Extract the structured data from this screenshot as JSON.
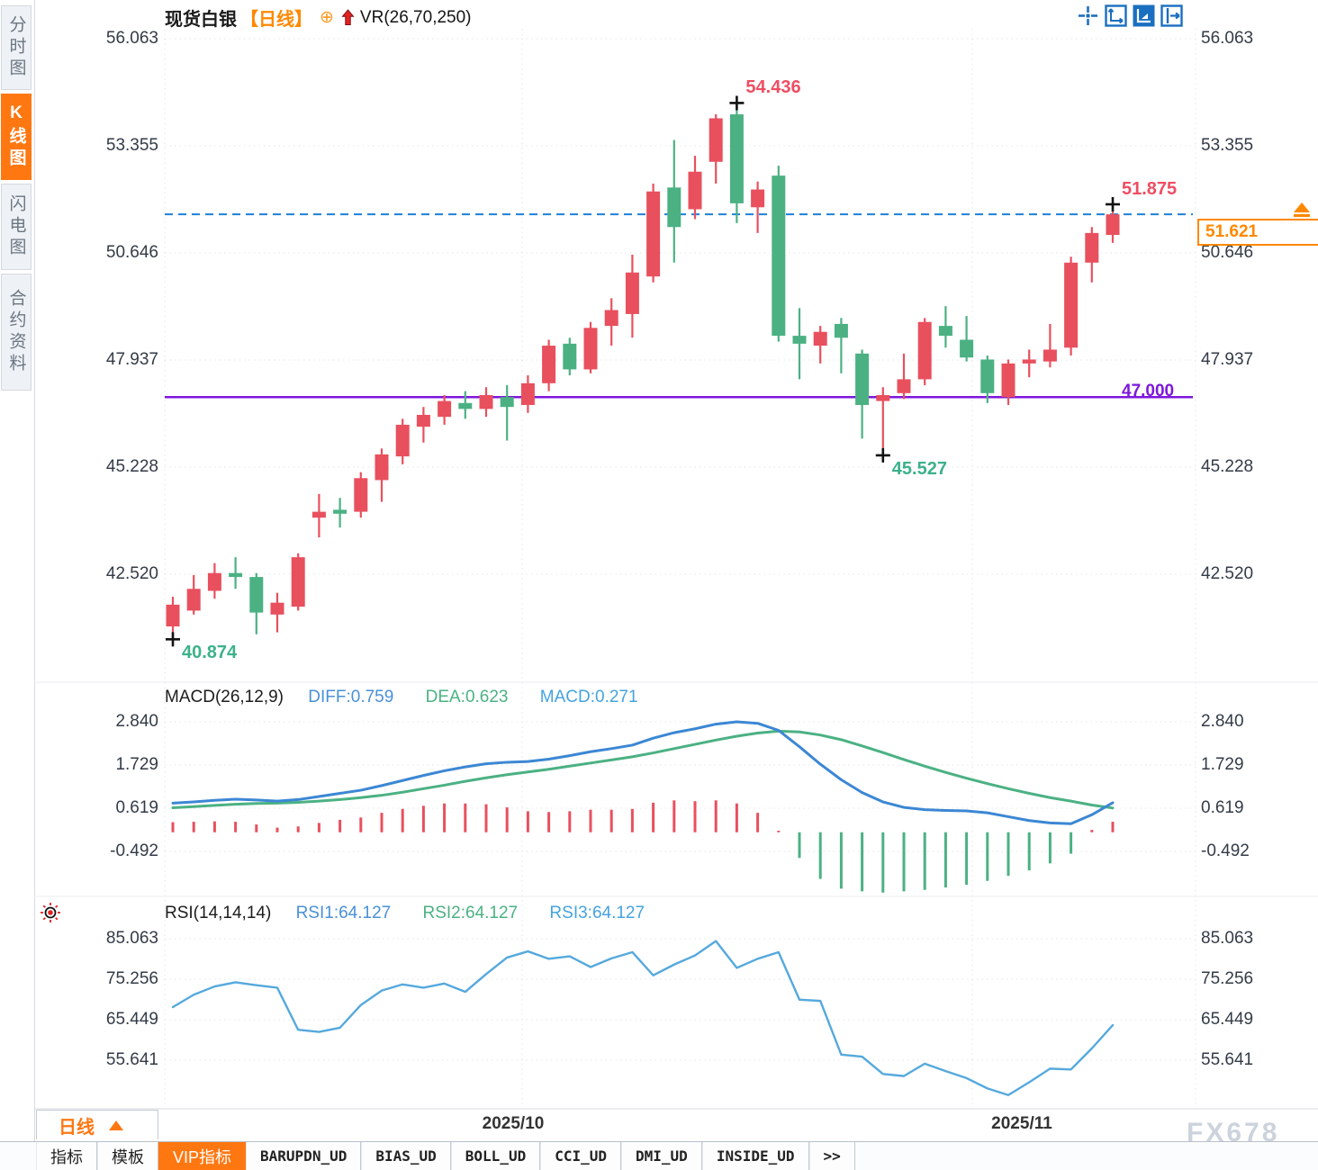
{
  "header": {
    "symbol": "现货白银",
    "period_tag": "【日线】",
    "overlay_add_icon": "circle-plus",
    "indicator_label": "VR(26,70,250)"
  },
  "sidebar": {
    "tabs": [
      {
        "label": "分时图",
        "active": false
      },
      {
        "label": "K线图",
        "active": true
      },
      {
        "label": "闪电图",
        "active": false
      },
      {
        "label": "合约资料",
        "active": false
      }
    ]
  },
  "toolbar": {
    "icons": [
      "pan-crosshair",
      "axis-range",
      "chart-style",
      "dock-right"
    ],
    "active_index": 2
  },
  "price_panel": {
    "axis_ticks": [
      "56.063",
      "53.355",
      "50.646",
      "47.937",
      "45.228",
      "42.520"
    ],
    "support_label": "47.000",
    "current_price": "51.621",
    "annotations": {
      "peak": "54.436",
      "recent_high": "51.875",
      "swing_low": "45.527",
      "start_low": "40.874"
    }
  },
  "macd_panel": {
    "title": "MACD(26,12,9)",
    "values": {
      "diff": "DIFF:0.759",
      "dea": "DEA:0.623",
      "macd": "MACD:0.271"
    },
    "axis_ticks": [
      "2.840",
      "1.729",
      "0.619",
      "-0.492"
    ]
  },
  "rsi_panel": {
    "title": "RSI(14,14,14)",
    "values": {
      "rsi1": "RSI1:64.127",
      "rsi2": "RSI2:64.127",
      "rsi3": "RSI3:64.127"
    },
    "axis_ticks": [
      "85.063",
      "75.256",
      "65.449",
      "55.641"
    ]
  },
  "time_axis": {
    "month_labels": [
      "2025/10",
      "2025/11"
    ],
    "period_selector": "日线"
  },
  "bottom_bar": {
    "tabs": [
      {
        "label": "指标",
        "active": false,
        "mono": false
      },
      {
        "label": "模板",
        "active": false,
        "mono": false
      },
      {
        "label": "VIP指标",
        "active": true,
        "mono": false
      },
      {
        "label": "BARUPDN_UD",
        "active": false,
        "mono": true
      },
      {
        "label": "BIAS_UD",
        "active": false,
        "mono": true
      },
      {
        "label": "BOLL_UD",
        "active": false,
        "mono": true
      },
      {
        "label": "CCI_UD",
        "active": false,
        "mono": true
      },
      {
        "label": "DMI_UD",
        "active": false,
        "mono": true
      },
      {
        "label": "INSIDE_UD",
        "active": false,
        "mono": true
      },
      {
        "label": ">>",
        "active": false,
        "mono": true
      }
    ]
  },
  "watermark": "FX678",
  "colors": {
    "up": "#e8505e",
    "down": "#4bb183",
    "accent_orange": "#ff7711",
    "price_orange": "#ff8800",
    "line_blue": "#1e80d8",
    "support_purple": "#7d17dd",
    "macd_diff": "#3c87d4",
    "macd_dea": "#4bb183",
    "rsi_line": "#55a9dd",
    "annotation_red": "#ef4e63",
    "annotation_green": "#3cb189",
    "icon_blue": "#1a6fc0"
  },
  "chart_data": [
    {
      "type": "candlestick",
      "title": "现货白银 日线",
      "ylim": [
        41.0,
        56.5
      ],
      "y_ticks": [
        56.063,
        53.355,
        50.646,
        47.937,
        45.228,
        42.52
      ],
      "x_month_gridlines": [
        "2025/10",
        "2025/11"
      ],
      "support_line": 47.0,
      "current_price": 51.621,
      "annotations": [
        {
          "index": 0,
          "anchor": "low",
          "value": 40.874
        },
        {
          "index": 27,
          "anchor": "high",
          "value": 54.436
        },
        {
          "index": 34,
          "anchor": "low",
          "value": 45.527
        },
        {
          "index": 45,
          "anchor": "high",
          "value": 51.875
        }
      ],
      "candles": [
        [
          41.2,
          41.95,
          40.874,
          41.75
        ],
        [
          41.6,
          42.5,
          41.5,
          42.15
        ],
        [
          42.1,
          42.8,
          41.9,
          42.55
        ],
        [
          42.55,
          42.95,
          42.15,
          42.45
        ],
        [
          42.45,
          42.55,
          41.0,
          41.55
        ],
        [
          41.5,
          42.05,
          41.05,
          41.8
        ],
        [
          41.7,
          43.05,
          41.6,
          42.95
        ],
        [
          43.95,
          44.55,
          43.45,
          44.1
        ],
        [
          44.15,
          44.45,
          43.7,
          44.05
        ],
        [
          44.1,
          45.1,
          43.95,
          44.95
        ],
        [
          44.9,
          45.7,
          44.35,
          45.55
        ],
        [
          45.5,
          46.45,
          45.3,
          46.3
        ],
        [
          46.25,
          46.75,
          45.85,
          46.55
        ],
        [
          46.5,
          47.05,
          46.3,
          46.9
        ],
        [
          46.85,
          47.15,
          46.45,
          46.7
        ],
        [
          46.7,
          47.25,
          46.5,
          47.05
        ],
        [
          47.0,
          47.3,
          45.9,
          46.75
        ],
        [
          46.8,
          47.55,
          46.6,
          47.35
        ],
        [
          47.35,
          48.45,
          47.15,
          48.3
        ],
        [
          48.35,
          48.5,
          47.55,
          47.7
        ],
        [
          47.7,
          48.9,
          47.6,
          48.75
        ],
        [
          48.8,
          49.5,
          48.3,
          49.2
        ],
        [
          49.1,
          50.6,
          48.5,
          50.15
        ],
        [
          50.05,
          52.4,
          49.9,
          52.2
        ],
        [
          52.3,
          53.5,
          50.4,
          51.3
        ],
        [
          51.75,
          53.1,
          51.5,
          52.7
        ],
        [
          52.95,
          54.15,
          52.4,
          54.05
        ],
        [
          54.15,
          54.436,
          51.4,
          51.9
        ],
        [
          51.8,
          52.45,
          51.15,
          52.25
        ],
        [
          52.6,
          52.85,
          48.4,
          48.55
        ],
        [
          48.55,
          49.25,
          47.45,
          48.35
        ],
        [
          48.3,
          48.8,
          47.85,
          48.65
        ],
        [
          48.85,
          49.0,
          47.6,
          48.5
        ],
        [
          48.1,
          48.2,
          45.95,
          46.8
        ],
        [
          46.9,
          47.25,
          45.527,
          47.05
        ],
        [
          47.1,
          48.1,
          46.95,
          47.45
        ],
        [
          47.45,
          49.0,
          47.3,
          48.9
        ],
        [
          48.8,
          49.3,
          48.25,
          48.55
        ],
        [
          48.45,
          49.05,
          47.9,
          48.0
        ],
        [
          47.95,
          48.05,
          46.85,
          47.1
        ],
        [
          47.0,
          47.95,
          46.8,
          47.85
        ],
        [
          47.85,
          48.2,
          47.5,
          47.95
        ],
        [
          47.9,
          48.85,
          47.75,
          48.2
        ],
        [
          48.25,
          50.55,
          48.05,
          50.4
        ],
        [
          50.4,
          51.3,
          49.9,
          51.15
        ],
        [
          51.1,
          51.875,
          50.9,
          51.621
        ]
      ]
    },
    {
      "type": "macd",
      "title": "MACD(26,12,9)",
      "current": {
        "diff": 0.759,
        "dea": 0.623,
        "macd": 0.271
      },
      "y_ticks": [
        2.84,
        1.729,
        0.619,
        -0.492
      ],
      "diff": [
        0.75,
        0.78,
        0.82,
        0.85,
        0.83,
        0.8,
        0.84,
        0.92,
        1.0,
        1.08,
        1.2,
        1.33,
        1.46,
        1.58,
        1.68,
        1.76,
        1.8,
        1.82,
        1.88,
        1.97,
        2.07,
        2.15,
        2.24,
        2.42,
        2.56,
        2.66,
        2.78,
        2.84,
        2.8,
        2.62,
        2.2,
        1.75,
        1.35,
        1.02,
        0.78,
        0.64,
        0.58,
        0.56,
        0.55,
        0.5,
        0.4,
        0.3,
        0.24,
        0.22,
        0.45,
        0.759
      ],
      "dea": [
        0.63,
        0.66,
        0.69,
        0.72,
        0.74,
        0.75,
        0.77,
        0.8,
        0.84,
        0.89,
        0.95,
        1.03,
        1.12,
        1.21,
        1.31,
        1.4,
        1.48,
        1.55,
        1.62,
        1.7,
        1.78,
        1.86,
        1.94,
        2.04,
        2.15,
        2.26,
        2.37,
        2.47,
        2.55,
        2.6,
        2.58,
        2.5,
        2.38,
        2.22,
        2.05,
        1.87,
        1.7,
        1.54,
        1.39,
        1.25,
        1.12,
        1.0,
        0.89,
        0.8,
        0.7,
        0.623
      ],
      "hist": [
        0.26,
        0.27,
        0.28,
        0.27,
        0.2,
        0.12,
        0.15,
        0.24,
        0.32,
        0.38,
        0.5,
        0.6,
        0.68,
        0.74,
        0.74,
        0.72,
        0.64,
        0.54,
        0.52,
        0.54,
        0.58,
        0.58,
        0.6,
        0.76,
        0.82,
        0.8,
        0.82,
        0.74,
        0.5,
        0.04,
        -0.66,
        -1.2,
        -1.45,
        -1.52,
        -1.55,
        -1.52,
        -1.48,
        -1.42,
        -1.35,
        -1.25,
        -1.12,
        -0.98,
        -0.8,
        -0.55,
        0.06,
        0.271
      ]
    },
    {
      "type": "rsi",
      "title": "RSI(14,14,14)",
      "current": {
        "rsi1": 64.127,
        "rsi2": 64.127,
        "rsi3": 64.127
      },
      "y_ticks": [
        85.063,
        75.256,
        65.449,
        55.641
      ],
      "rsi": [
        68.5,
        71.5,
        73.5,
        74.5,
        73.8,
        73.2,
        63.0,
        62.5,
        63.5,
        69.0,
        72.5,
        74.0,
        73.2,
        74.2,
        72.2,
        76.5,
        80.5,
        82.0,
        80.2,
        80.8,
        78.2,
        80.3,
        81.8,
        76.2,
        78.8,
        81.0,
        84.5,
        78.0,
        80.2,
        81.8,
        70.3,
        70.0,
        57.0,
        56.5,
        52.3,
        51.8,
        54.8,
        53.0,
        51.3,
        48.8,
        47.2,
        50.3,
        53.6,
        53.4,
        58.5,
        64.127
      ]
    }
  ]
}
